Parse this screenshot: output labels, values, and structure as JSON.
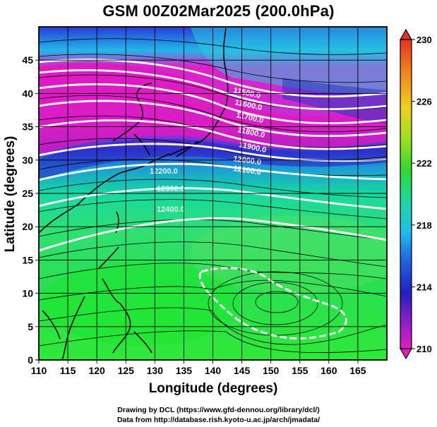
{
  "title": "GSM 00Z02Mar2025 (200.0hPa)",
  "axes": {
    "xlabel": "Longitude (degrees)",
    "ylabel": "Latitude  (degrees)",
    "xticks": [
      "110",
      "115",
      "120",
      "125",
      "130",
      "135",
      "140",
      "145",
      "150",
      "155",
      "160",
      "165"
    ],
    "yticks": [
      "0",
      "5",
      "10",
      "15",
      "20",
      "25",
      "30",
      "35",
      "40",
      "45"
    ],
    "xlim": [
      110,
      170
    ],
    "ylim": [
      0,
      50
    ]
  },
  "colorbar": {
    "labels": [
      "230",
      "226",
      "222",
      "218",
      "214",
      "210"
    ],
    "range": [
      210,
      230
    ]
  },
  "contours": [
    {
      "label": "11500.0",
      "value": 11500
    },
    {
      "label": "11600.0",
      "value": 11600
    },
    {
      "label": "11700.0",
      "value": 11700
    },
    {
      "label": "11800.0",
      "value": 11800
    },
    {
      "label": "11900.0",
      "value": 11900
    },
    {
      "label": "12000.0",
      "value": 12000
    },
    {
      "label": "12100.0",
      "value": 12100
    },
    {
      "label": "12200.0",
      "value": 12200
    },
    {
      "label": "12300.0",
      "value": 12300
    },
    {
      "label": "12400.0",
      "value": 12400
    }
  ],
  "credits": {
    "line1": "Drawing by DCL (https://www.gfd-dennou.org/library/dcl/)",
    "line2": "Data from http://database.rish.kyoto-u.ac.jp/arch/jmadata/"
  }
}
